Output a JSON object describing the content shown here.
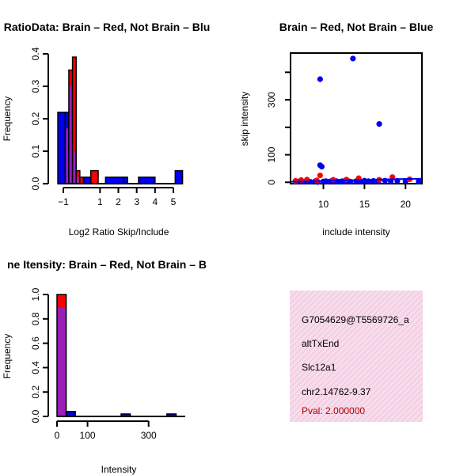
{
  "colors": {
    "red": "#ff0000",
    "blue": "#0000ee",
    "purple": "#9b1fb7",
    "info_bg": "#f7dcec",
    "pval": "#b00000"
  },
  "chart_data": [
    {
      "type": "bar",
      "title": "RatioData: Brain – Red, Not Brain – Blu",
      "xlabel": "Log2 Ratio Skip/Include",
      "ylabel": "Frequency",
      "xlim": [
        -1.0,
        5.0
      ],
      "ylim": [
        0,
        0.4
      ],
      "xticks": [
        "−1",
        "1",
        "2",
        "3",
        "4",
        "5"
      ],
      "yticks": [
        "0.0",
        "0.1",
        "0.2",
        "0.3",
        "0.4"
      ],
      "bin_edges": [
        -1.3,
        -0.9,
        -0.7,
        -0.5,
        -0.3,
        -0.1,
        0.1,
        0.5,
        0.9,
        1.3,
        2.3,
        2.5,
        3.1,
        4.0,
        4.4,
        5.1,
        5.5
      ],
      "series": [
        {
          "name": "Brain",
          "color": "red",
          "values": [
            0.0,
            0.17,
            0.35,
            0.39,
            0.04,
            0.02,
            0.0,
            0.04,
            0.0,
            0.0,
            0.0,
            0.0,
            0.0,
            0.0,
            0.0,
            0.0
          ]
        },
        {
          "name": "Not Brain",
          "color": "blue",
          "values": [
            0.22,
            0.22,
            0.3,
            0.1,
            0.02,
            0.0,
            0.02,
            0.0,
            0.0,
            0.02,
            0.02,
            0.0,
            0.02,
            0.0,
            0.0,
            0.04
          ]
        }
      ]
    },
    {
      "type": "scatter",
      "title": "Brain – Red, Not Brain – Blue",
      "xlabel": "include intensity",
      "ylabel": "skip intensity",
      "xlim": [
        6.0,
        22.0
      ],
      "ylim": [
        -5,
        470
      ],
      "xticks": [
        "10",
        "15",
        "20"
      ],
      "yticks": [
        "0",
        "100",
        "300"
      ],
      "series": [
        {
          "name": "Not Brain",
          "color": "blue",
          "points": [
            [
              13.6,
              450
            ],
            [
              9.6,
              375
            ],
            [
              16.8,
              212
            ],
            [
              9.6,
              62
            ],
            [
              9.8,
              57
            ],
            [
              7.0,
              3
            ],
            [
              7.5,
              2
            ],
            [
              8.0,
              4
            ],
            [
              8.4,
              2
            ],
            [
              9.0,
              4
            ],
            [
              9.3,
              1
            ],
            [
              10.0,
              3
            ],
            [
              10.3,
              4
            ],
            [
              10.6,
              2
            ],
            [
              11.0,
              5
            ],
            [
              11.3,
              3
            ],
            [
              11.6,
              4
            ],
            [
              12.0,
              2
            ],
            [
              12.3,
              4
            ],
            [
              12.6,
              3
            ],
            [
              13.0,
              5
            ],
            [
              13.3,
              2
            ],
            [
              14.0,
              4
            ],
            [
              14.5,
              3
            ],
            [
              15.0,
              6
            ],
            [
              15.5,
              4
            ],
            [
              16.1,
              5
            ],
            [
              16.7,
              3
            ],
            [
              17.5,
              6
            ],
            [
              18.2,
              4
            ],
            [
              19.0,
              5
            ],
            [
              20.0,
              4
            ],
            [
              21.6,
              3
            ]
          ]
        },
        {
          "name": "Brain",
          "color": "red",
          "points": [
            [
              6.6,
              5
            ],
            [
              7.3,
              8
            ],
            [
              8.0,
              10
            ],
            [
              9.6,
              25
            ],
            [
              9.2,
              7
            ],
            [
              11.2,
              9
            ],
            [
              12.8,
              10
            ],
            [
              14.3,
              15
            ],
            [
              16.8,
              9
            ],
            [
              18.4,
              19
            ],
            [
              20.5,
              11
            ]
          ]
        }
      ],
      "trend": {
        "color": "blue",
        "points": [
          [
            6.0,
            2
          ],
          [
            10.0,
            5
          ],
          [
            14.0,
            8
          ],
          [
            18.0,
            11
          ],
          [
            22.0,
            13
          ]
        ]
      }
    },
    {
      "type": "bar",
      "title": "ne Itensity: Brain – Red, Not Brain – B",
      "xlabel": "Intensity",
      "ylabel": "Frequency",
      "xlim": [
        0,
        420
      ],
      "ylim": [
        0,
        1.0
      ],
      "xticks": [
        "0",
        "100",
        "300"
      ],
      "yticks": [
        "0.0",
        "0.2",
        "0.4",
        "0.6",
        "0.8",
        "1.0"
      ],
      "bin_edges": [
        0,
        30,
        60,
        90,
        120,
        150,
        180,
        210,
        240,
        270,
        300,
        330,
        360,
        390,
        420
      ],
      "series": [
        {
          "name": "Brain",
          "color": "red",
          "values": [
            1.0,
            0.0,
            0.0,
            0.0,
            0.0,
            0.0,
            0.0,
            0.0,
            0.0,
            0.0,
            0.0,
            0.0,
            0.0,
            0.0
          ]
        },
        {
          "name": "Not Brain",
          "color": "blue",
          "values": [
            0.89,
            0.04,
            0.0,
            0.0,
            0.0,
            0.0,
            0.0,
            0.02,
            0.0,
            0.0,
            0.0,
            0.0,
            0.02,
            0.0
          ]
        }
      ]
    }
  ],
  "info_panel": {
    "lines": [
      "G7054629@T5569726_a",
      "altTxEnd",
      "Slc12a1",
      "chr2.14762-9.37"
    ],
    "pval": "Pval: 2.000000"
  }
}
